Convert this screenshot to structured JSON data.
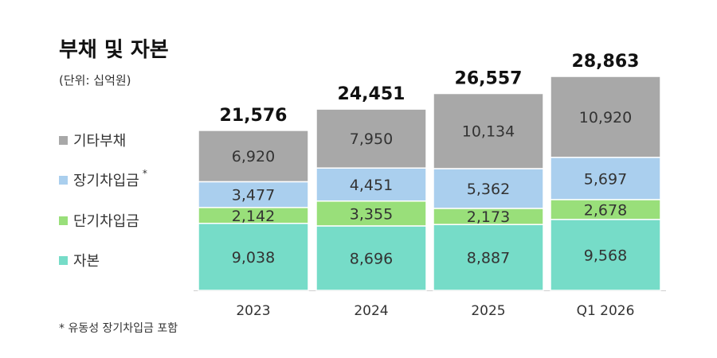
{
  "chart_data": {
    "type": "bar",
    "stacked": true,
    "title": "부채 및 자본",
    "unit": "(단위: 십억원)",
    "categories": [
      "2023",
      "2024",
      "2025",
      "Q1 2026"
    ],
    "totals": [
      21576,
      24451,
      26557,
      28863
    ],
    "total_labels": [
      "21,576",
      "24,451",
      "26,557",
      "28,863"
    ],
    "series": [
      {
        "name": "자본",
        "values": [
          9038,
          8696,
          8887,
          9568
        ],
        "labels": [
          "9,038",
          "8,696",
          "8,887",
          "9,568"
        ],
        "color": "#76dcc8"
      },
      {
        "name": "단기차입금",
        "values": [
          2142,
          3355,
          2173,
          2678
        ],
        "labels": [
          "2,142",
          "3,355",
          "2,173",
          "2,678"
        ],
        "color": "#99df7a"
      },
      {
        "name": "장기차입금",
        "values": [
          3477,
          4451,
          5362,
          5697
        ],
        "labels": [
          "3,477",
          "4,451",
          "5,362",
          "5,697"
        ],
        "color": "#aacfee"
      },
      {
        "name": "기타부채",
        "values": [
          6920,
          7950,
          10134,
          10920
        ],
        "labels": [
          "6,920",
          "7,950",
          "10,134",
          "10,920"
        ],
        "color": "#a8a8a8"
      }
    ],
    "legend_order": [
      "기타부채",
      "장기차입금",
      "단기차입금",
      "자본"
    ],
    "legend_note_series": "장기차입금",
    "legend_note_mark": "*",
    "legend_placement": "left",
    "grid": false,
    "footnote": "* 유동성 장기차입금 포함"
  }
}
